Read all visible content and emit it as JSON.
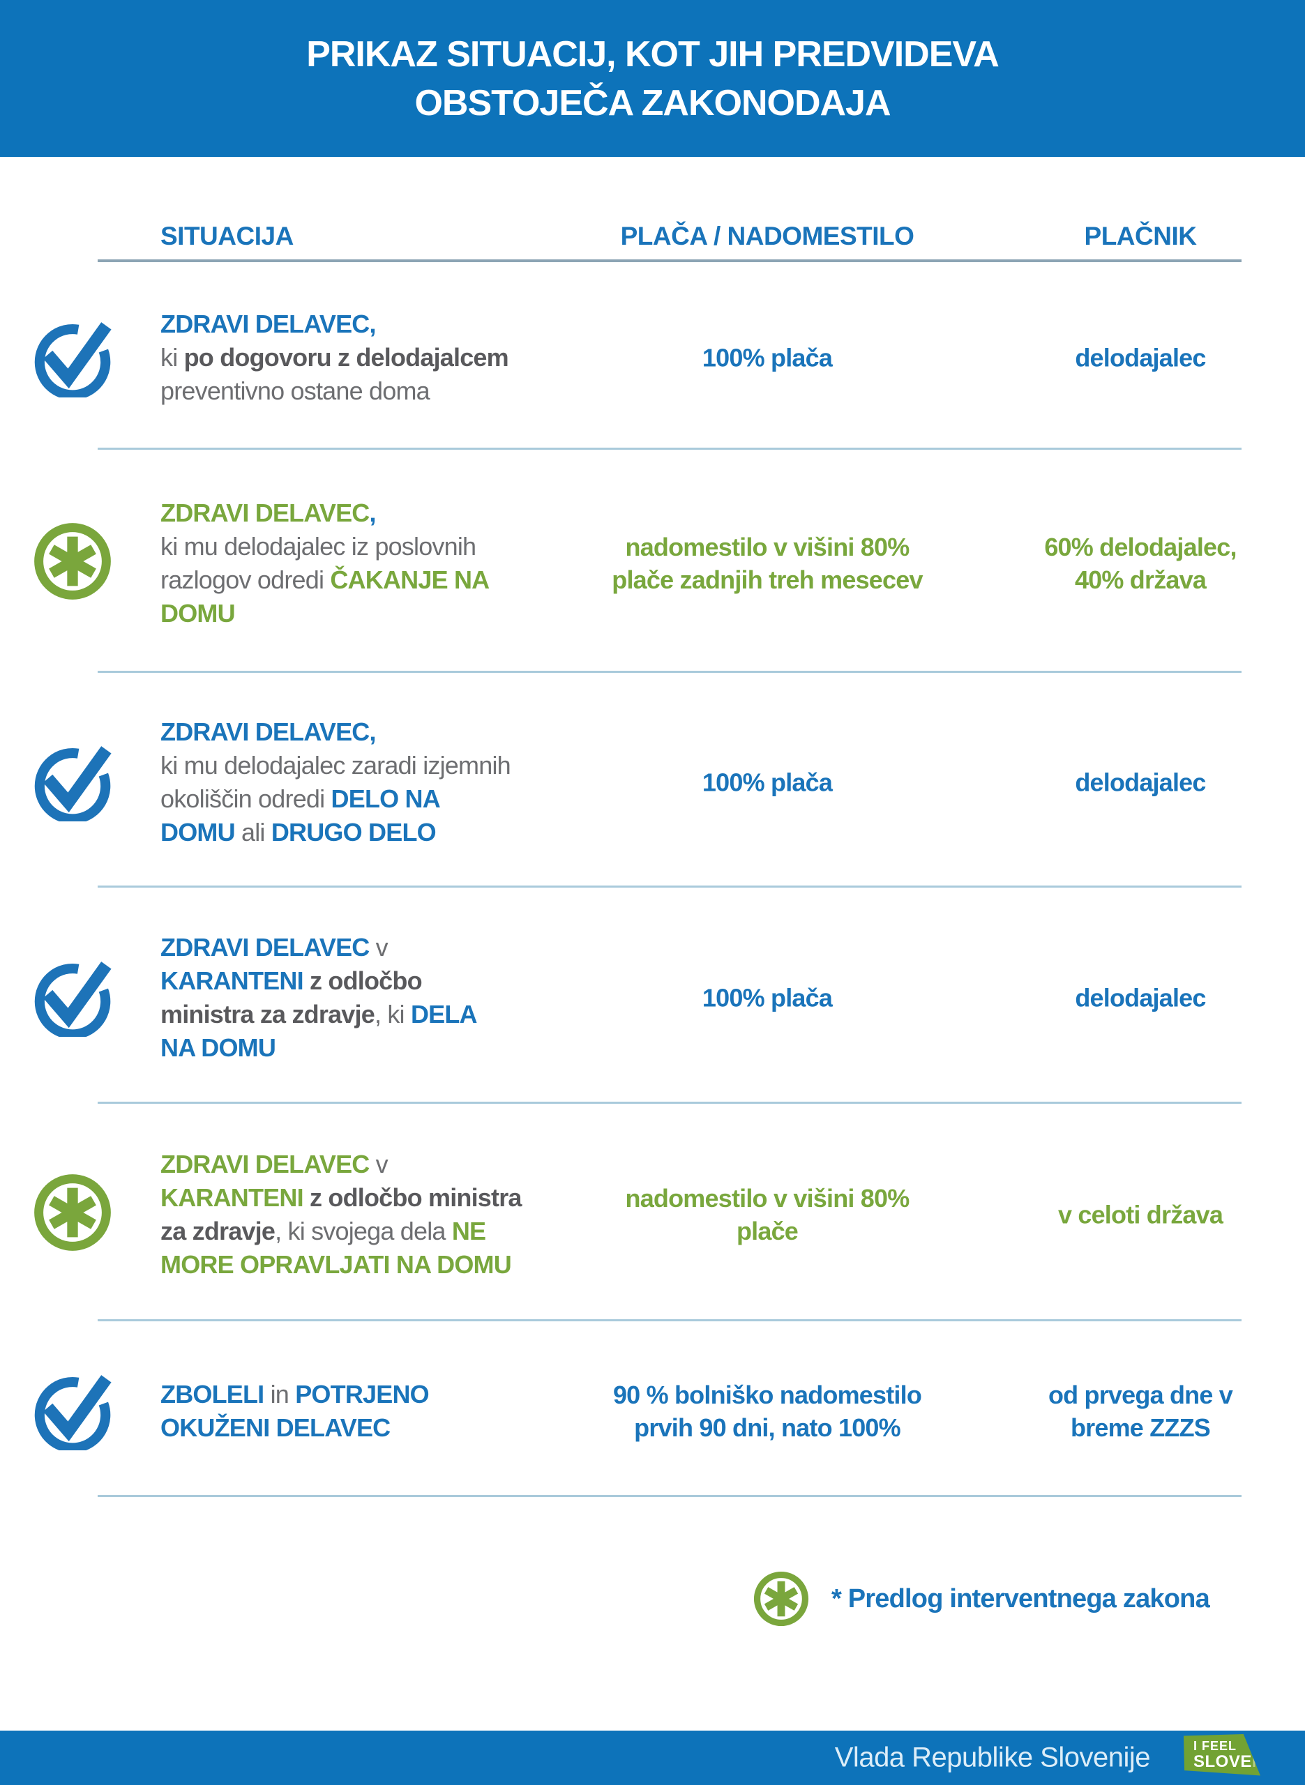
{
  "colors": {
    "banner_blue": "#0d73ba",
    "text_blue": "#1a74ba",
    "green": "#79a73d",
    "gray": "#6d6e71",
    "divider": "#a9cadb",
    "logo_green": "#72a233"
  },
  "header": {
    "title_line1": "PRIKAZ SITUACIJ, KOT JIH PREDVIDEVA",
    "title_line2": "OBSTOJEČA ZAKONODAJA"
  },
  "table": {
    "columns": {
      "situation": "SITUACIJA",
      "pay": "PLAČA / NADOMESTILO",
      "payer": "PLAČNIK"
    },
    "rows": [
      {
        "icon": "check-circle",
        "situation": [
          {
            "t": "ZDRAVI DELAVEC,",
            "c": "blue-b"
          },
          {
            "br": true
          },
          {
            "t": "ki ",
            "c": "gray"
          },
          {
            "t": "po dogovoru z delodajalcem",
            "c": "gray-b"
          },
          {
            "br": true
          },
          {
            "t": "preventivno ostane doma",
            "c": "gray"
          }
        ],
        "pay": [
          {
            "t": "100% plača",
            "c": "blue-b"
          }
        ],
        "payer": [
          {
            "t": "delodajalec",
            "c": "blue-b"
          }
        ]
      },
      {
        "icon": "asterisk-circle",
        "situation": [
          {
            "t": "ZDRAVI DELAVEC",
            "c": "green-b"
          },
          {
            "t": ",",
            "c": "blue-b"
          },
          {
            "br": true
          },
          {
            "t": "ki mu delodajalec iz poslovnih",
            "c": "gray"
          },
          {
            "br": true
          },
          {
            "t": "razlogov odredi ",
            "c": "gray"
          },
          {
            "t": "ČAKANJE NA",
            "c": "green-b"
          },
          {
            "br": true
          },
          {
            "t": "DOMU",
            "c": "green-b"
          }
        ],
        "pay": [
          {
            "t": "nadomestilo v višini 80%",
            "c": "green-b"
          },
          {
            "br": true
          },
          {
            "t": "plače zadnjih treh mesecev",
            "c": "green-b"
          }
        ],
        "payer": [
          {
            "t": "60% delodajalec,",
            "c": "green-b"
          },
          {
            "br": true
          },
          {
            "t": "40% država",
            "c": "green-b"
          }
        ]
      },
      {
        "icon": "check-circle",
        "situation": [
          {
            "t": "ZDRAVI DELAVEC,",
            "c": "blue-b"
          },
          {
            "br": true
          },
          {
            "t": "ki mu delodajalec zaradi izjemnih",
            "c": "gray"
          },
          {
            "br": true
          },
          {
            "t": "okoliščin odredi ",
            "c": "gray"
          },
          {
            "t": "DELO NA",
            "c": "blue-b"
          },
          {
            "br": true
          },
          {
            "t": "DOMU",
            "c": "blue-b"
          },
          {
            "t": " ali ",
            "c": "gray"
          },
          {
            "t": "DRUGO DELO",
            "c": "blue-b"
          }
        ],
        "pay": [
          {
            "t": "100% plača",
            "c": "blue-b"
          }
        ],
        "payer": [
          {
            "t": "delodajalec",
            "c": "blue-b"
          }
        ]
      },
      {
        "icon": "check-circle",
        "situation": [
          {
            "t": "ZDRAVI DELAVEC",
            "c": "blue-b"
          },
          {
            "t": " v",
            "c": "gray"
          },
          {
            "br": true
          },
          {
            "t": "KARANTENI",
            "c": "blue-b"
          },
          {
            "t": " ",
            "c": "gray"
          },
          {
            "t": "z odločbo",
            "c": "gray-b"
          },
          {
            "br": true
          },
          {
            "t": "ministra za zdravje",
            "c": "gray-b"
          },
          {
            "t": ", ki ",
            "c": "gray"
          },
          {
            "t": "DELA",
            "c": "blue-b"
          },
          {
            "br": true
          },
          {
            "t": "NA DOMU",
            "c": "blue-b"
          }
        ],
        "pay": [
          {
            "t": "100% plača",
            "c": "blue-b"
          }
        ],
        "payer": [
          {
            "t": "delodajalec",
            "c": "blue-b"
          }
        ]
      },
      {
        "icon": "asterisk-circle",
        "situation": [
          {
            "t": "ZDRAVI DELAVEC",
            "c": "green-b"
          },
          {
            "t": " v",
            "c": "gray"
          },
          {
            "br": true
          },
          {
            "t": "KARANTENI",
            "c": "green-b"
          },
          {
            "t": " ",
            "c": "gray"
          },
          {
            "t": "z odločbo ministra",
            "c": "gray-b"
          },
          {
            "br": true
          },
          {
            "t": "za zdravje",
            "c": "gray-b"
          },
          {
            "t": ", ki svojega dela ",
            "c": "gray"
          },
          {
            "t": "NE",
            "c": "green-b"
          },
          {
            "br": true
          },
          {
            "t": "MORE OPRAVLJATI NA DOMU",
            "c": "green-b"
          }
        ],
        "pay": [
          {
            "t": "nadomestilo v višini 80%",
            "c": "green-b"
          },
          {
            "br": true
          },
          {
            "t": "plače",
            "c": "green-b"
          }
        ],
        "payer": [
          {
            "t": "v celoti država",
            "c": "green-b"
          }
        ]
      },
      {
        "icon": "check-circle",
        "situation": [
          {
            "t": "ZBOLELI",
            "c": "blue-b"
          },
          {
            "t": " in ",
            "c": "gray"
          },
          {
            "t": "POTRJENO",
            "c": "blue-b"
          },
          {
            "br": true
          },
          {
            "t": "OKUŽENI DELAVEC",
            "c": "blue-b"
          }
        ],
        "pay": [
          {
            "t": "90 % bolniško nadomestilo",
            "c": "blue-b"
          },
          {
            "br": true
          },
          {
            "t": "prvih 90 dni, nato 100%",
            "c": "blue-b"
          }
        ],
        "payer": [
          {
            "t": "od prvega dne v",
            "c": "blue-b"
          },
          {
            "br": true
          },
          {
            "t": "breme ZZZS",
            "c": "blue-b"
          }
        ]
      }
    ]
  },
  "footnote": {
    "icon": "asterisk-circle",
    "text": "* Predlog interventnega zakona"
  },
  "footer": {
    "text": "Vlada Republike Slovenije",
    "logo": {
      "line1": "I FEEL",
      "line2_strong": "SLOVE",
      "line2_light": "NIA"
    }
  }
}
